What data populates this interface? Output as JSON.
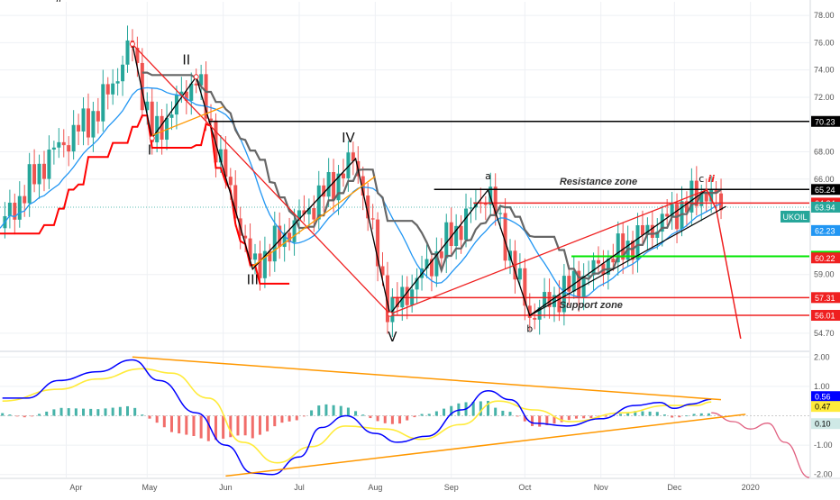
{
  "chart_data": [
    {
      "type": "candlestick",
      "symbol": "UKOIL",
      "last_price": "63.94",
      "colors": {
        "up": "#26a69a",
        "down": "#ef5350",
        "sma": "#2196f3",
        "ichimoku_base": "#666666",
        "stop_line": "#ff0000",
        "orange": "#ff9800"
      },
      "y_ticks": [
        "78.00",
        "76.00",
        "74.00",
        "72.00",
        "68.00",
        "66.00",
        "59.00",
        "54.70"
      ],
      "x_ticks": [
        "Apr",
        "May",
        "Jun",
        "Jul",
        "Aug",
        "Sep",
        "Oct",
        "Nov",
        "Dec",
        "2020"
      ],
      "ylim": [
        53.5,
        79.0
      ],
      "price_levels": [
        {
          "value": "70.23",
          "color": "#000000"
        },
        {
          "value": "65.24",
          "color": "#000000"
        },
        {
          "value": "64.24",
          "color": "#ef2020"
        },
        {
          "value": "63.94",
          "color": "#26a69a"
        },
        {
          "value": "62.23",
          "color": "#2196f3"
        },
        {
          "value": "60.34",
          "color": "#00e600"
        },
        {
          "value": "60.22",
          "color": "#ef2020"
        },
        {
          "value": "57.31",
          "color": "#ef2020"
        },
        {
          "value": "56.01",
          "color": "#ef2020"
        }
      ],
      "annotations": [
        {
          "text": "Resistance zone"
        },
        {
          "text": "Support zone"
        }
      ],
      "wave_labels": [
        {
          "text": "ii",
          "x": "Mar 25",
          "y": 79.0
        },
        {
          "text": "I",
          "x": "May 1",
          "y": 67.8
        },
        {
          "text": "II",
          "x": "May 16",
          "y": 74.4
        },
        {
          "text": "III",
          "x": "Jun 12",
          "y": 58.3
        },
        {
          "text": "IV",
          "x": "Jul 21",
          "y": 68.7
        },
        {
          "text": "V",
          "x": "Aug 8",
          "y": 54.1
        },
        {
          "text": "a",
          "x": "Sep 16",
          "y": 66.0
        },
        {
          "text": "b",
          "x": "Oct 3",
          "y": 54.8
        },
        {
          "text": "c",
          "x": "Dec 12",
          "y": 65.8
        },
        {
          "text": "ii",
          "x": "Dec 16",
          "y": 65.8
        }
      ],
      "elliott_path": [
        {
          "x": "Apr 24",
          "y": 75.9
        },
        {
          "x": "May 2",
          "y": 69.0
        },
        {
          "x": "May 20",
          "y": 73.5
        },
        {
          "x": "Jun 12",
          "y": 59.4
        },
        {
          "x": "Jul 24",
          "y": 67.5
        },
        {
          "x": "Aug 7",
          "y": 56.1
        },
        {
          "x": "Sep 16",
          "y": 65.2
        },
        {
          "x": "Oct 3",
          "y": 56.0
        },
        {
          "x": "Dec 14",
          "y": 65.2
        }
      ],
      "projection_path": [
        {
          "x": "Dec 14",
          "y": 65.3
        },
        {
          "x": "Dec 18",
          "y": 63.8
        },
        {
          "x": "Dec 28",
          "y": 54.3
        }
      ],
      "indicator": {
        "name": "MACD",
        "y_ticks": [
          "2.00",
          "1.00",
          "-1.00",
          "-2.00"
        ],
        "labels": [
          "0.56",
          "0.47",
          "0.10"
        ],
        "macd_color": "#0000ff",
        "signal_color": "#ffeb3b",
        "ylim": [
          -2.1,
          2.1
        ],
        "macd": [
          {
            "x": "Mar 2",
            "y": 0.6
          },
          {
            "x": "Mar 12",
            "y": 0.6
          },
          {
            "x": "Mar 25",
            "y": 1.2
          },
          {
            "x": "Apr 10",
            "y": 1.5
          },
          {
            "x": "Apr 24",
            "y": 1.9
          },
          {
            "x": "May 5",
            "y": 1.2
          },
          {
            "x": "May 20",
            "y": 0.1
          },
          {
            "x": "Jun 1",
            "y": -1.0
          },
          {
            "x": "Jun 12",
            "y": -1.95
          },
          {
            "x": "Jun 20",
            "y": -2.0
          },
          {
            "x": "Jul 1",
            "y": -1.4
          },
          {
            "x": "Jul 10",
            "y": -0.4
          },
          {
            "x": "Jul 20",
            "y": 0.0
          },
          {
            "x": "Aug 1",
            "y": -0.6
          },
          {
            "x": "Aug 10",
            "y": -0.9
          },
          {
            "x": "Aug 22",
            "y": -0.7
          },
          {
            "x": "Sep 5",
            "y": 0.2
          },
          {
            "x": "Sep 16",
            "y": 0.85
          },
          {
            "x": "Sep 25",
            "y": 0.55
          },
          {
            "x": "Oct 5",
            "y": -0.25
          },
          {
            "x": "Oct 18",
            "y": -0.35
          },
          {
            "x": "Nov 1",
            "y": -0.1
          },
          {
            "x": "Nov 15",
            "y": 0.35
          },
          {
            "x": "Nov 25",
            "y": 0.45
          },
          {
            "x": "Dec 1",
            "y": 0.25
          },
          {
            "x": "Dec 8",
            "y": 0.4
          },
          {
            "x": "Dec 16",
            "y": 0.56
          }
        ],
        "signal": [
          {
            "x": "Mar 2",
            "y": 0.5
          },
          {
            "x": "Mar 25",
            "y": 0.9
          },
          {
            "x": "Apr 10",
            "y": 1.25
          },
          {
            "x": "Apr 28",
            "y": 1.6
          },
          {
            "x": "May 10",
            "y": 1.45
          },
          {
            "x": "May 25",
            "y": 0.6
          },
          {
            "x": "Jun 8",
            "y": -0.9
          },
          {
            "x": "Jun 22",
            "y": -1.6
          },
          {
            "x": "Jul 6",
            "y": -1.05
          },
          {
            "x": "Jul 20",
            "y": -0.35
          },
          {
            "x": "Aug 5",
            "y": -0.45
          },
          {
            "x": "Aug 20",
            "y": -0.8
          },
          {
            "x": "Sep 5",
            "y": -0.3
          },
          {
            "x": "Sep 20",
            "y": 0.5
          },
          {
            "x": "Oct 5",
            "y": 0.2
          },
          {
            "x": "Oct 20",
            "y": -0.2
          },
          {
            "x": "Nov 10",
            "y": 0.1
          },
          {
            "x": "Nov 28",
            "y": 0.35
          },
          {
            "x": "Dec 10",
            "y": 0.35
          },
          {
            "x": "Dec 16",
            "y": 0.47
          }
        ],
        "projection": [
          {
            "x": "Dec 16",
            "y": 0.1
          },
          {
            "x": "Dec 25",
            "y": -0.2
          },
          {
            "x": "Jan 1",
            "y": -0.45
          },
          {
            "x": "Jan 8",
            "y": -0.25
          },
          {
            "x": "Jan 15",
            "y": -0.9
          },
          {
            "x": "Jan 25",
            "y": -2.1
          }
        ]
      }
    }
  ]
}
